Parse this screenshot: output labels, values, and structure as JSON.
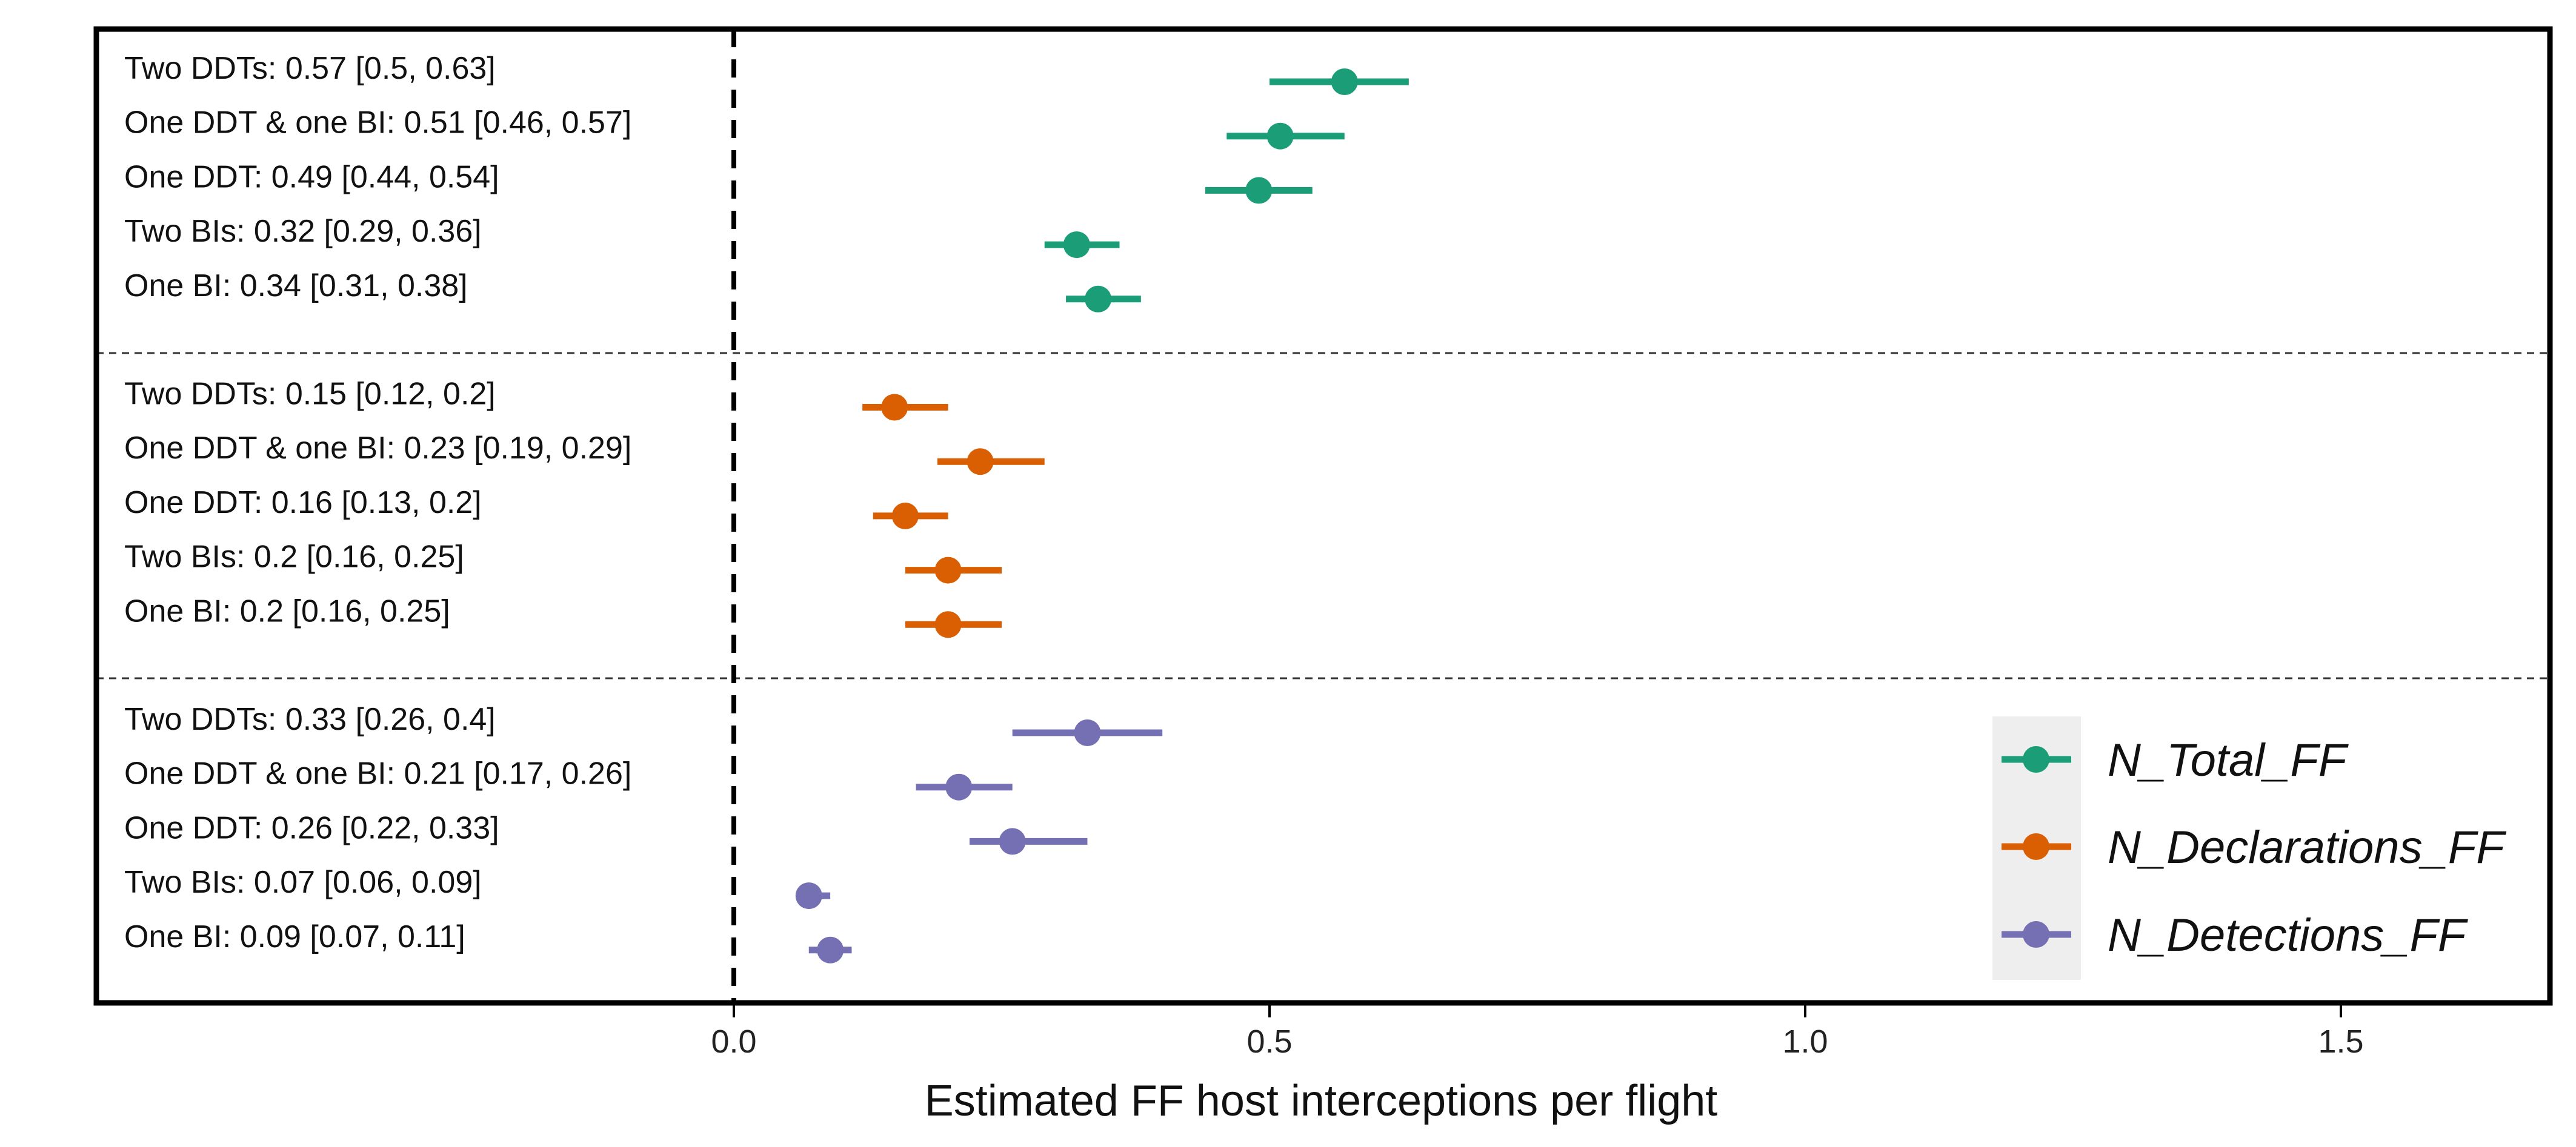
{
  "chart_data": {
    "type": "forest",
    "xlabel": "Estimated FF host interceptions per flight",
    "xlim": [
      -0.6,
      1.7
    ],
    "x_ticks": [
      "0.0",
      "0.5",
      "1.0",
      "1.5"
    ],
    "x_tick_values": [
      0.0,
      0.5,
      1.0,
      1.5
    ],
    "reference_line_x": 0.0,
    "legend_position": "bottom-right",
    "groups": [
      {
        "name": "N_Total_FF",
        "color": "#1b9e77",
        "rows": [
          {
            "label": "Two DDTs: 0.57 [0.5, 0.63]",
            "estimate": 0.57,
            "lower": 0.5,
            "upper": 0.63
          },
          {
            "label": "One DDT & one BI: 0.51 [0.46, 0.57]",
            "estimate": 0.51,
            "lower": 0.46,
            "upper": 0.57
          },
          {
            "label": "One DDT: 0.49 [0.44, 0.54]",
            "estimate": 0.49,
            "lower": 0.44,
            "upper": 0.54
          },
          {
            "label": "Two BIs: 0.32 [0.29, 0.36]",
            "estimate": 0.32,
            "lower": 0.29,
            "upper": 0.36
          },
          {
            "label": "One BI: 0.34 [0.31, 0.38]",
            "estimate": 0.34,
            "lower": 0.31,
            "upper": 0.38
          }
        ]
      },
      {
        "name": "N_Declarations_FF",
        "color": "#d95f02",
        "rows": [
          {
            "label": "Two DDTs: 0.15 [0.12, 0.2]",
            "estimate": 0.15,
            "lower": 0.12,
            "upper": 0.2
          },
          {
            "label": "One DDT & one BI: 0.23 [0.19, 0.29]",
            "estimate": 0.23,
            "lower": 0.19,
            "upper": 0.29
          },
          {
            "label": "One DDT: 0.16 [0.13, 0.2]",
            "estimate": 0.16,
            "lower": 0.13,
            "upper": 0.2
          },
          {
            "label": "Two BIs: 0.2 [0.16, 0.25]",
            "estimate": 0.2,
            "lower": 0.16,
            "upper": 0.25
          },
          {
            "label": "One BI: 0.2 [0.16, 0.25]",
            "estimate": 0.2,
            "lower": 0.16,
            "upper": 0.25
          }
        ]
      },
      {
        "name": "N_Detections_FF",
        "color": "#7570b3",
        "rows": [
          {
            "label": "Two DDTs: 0.33 [0.26, 0.4]",
            "estimate": 0.33,
            "lower": 0.26,
            "upper": 0.4
          },
          {
            "label": "One DDT & one BI: 0.21 [0.17, 0.26]",
            "estimate": 0.21,
            "lower": 0.17,
            "upper": 0.26
          },
          {
            "label": "One DDT: 0.26 [0.22, 0.33]",
            "estimate": 0.26,
            "lower": 0.22,
            "upper": 0.33
          },
          {
            "label": "Two BIs: 0.07 [0.06, 0.09]",
            "estimate": 0.07,
            "lower": 0.06,
            "upper": 0.09
          },
          {
            "label": "One BI: 0.09 [0.07, 0.11]",
            "estimate": 0.09,
            "lower": 0.07,
            "upper": 0.11
          }
        ]
      }
    ]
  }
}
